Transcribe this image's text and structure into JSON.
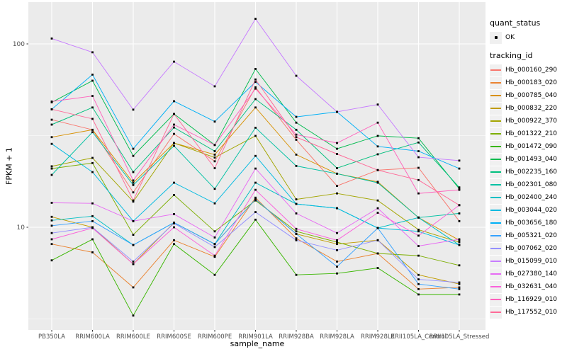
{
  "chart_data": {
    "type": "line",
    "title": "",
    "xlabel": "sample_name",
    "ylabel": "FPKM + 1",
    "y_scale": "log10",
    "y_tick_labels": [
      "100",
      "10"
    ],
    "y_tick_values": [
      100,
      10
    ],
    "y_minor_values": [
      31.62,
      3.162
    ],
    "ylim": [
      2.75,
      169
    ],
    "grid": "on",
    "legend_position": "right",
    "panel_bg": "#EBEBEB",
    "grid_color": "#FFFFFF",
    "tick_text_color": "#4D4D4D",
    "point_color": "#000000",
    "categories": [
      "PB350LA",
      "RRIM600LA",
      "RRIM600LE",
      "RRIM600SE",
      "RRIM600PE",
      "RRIM901LA",
      "RRIM928BA",
      "RRIM928LA",
      "RRIM928LE",
      "RRII105LA_Control",
      "RRII105LA_Stressed"
    ],
    "legend": {
      "quant_status_title": "quant_status",
      "quant_status_items": [
        {
          "label": "OK",
          "marker": "point"
        }
      ],
      "tracking_id_title": "tracking_id"
    },
    "series": [
      {
        "name": "Hb_000160_290",
        "color": "#F8766D",
        "values": [
          38.6,
          34,
          15.5,
          32.3,
          22.9,
          58,
          30,
          16.8,
          20.5,
          21.1,
          10.8
        ]
      },
      {
        "name": "Hb_000183_020",
        "color": "#EA8331",
        "values": [
          8.1,
          7.3,
          4.7,
          8.5,
          6.9,
          14.5,
          8.7,
          6.5,
          7.2,
          4.6,
          4.7
        ]
      },
      {
        "name": "Hb_000785_040",
        "color": "#D89000",
        "values": [
          31,
          34,
          17.5,
          28.8,
          24.9,
          45,
          24.9,
          19.6,
          17.7,
          11.3,
          8.5
        ]
      },
      {
        "name": "Hb_000832_220",
        "color": "#C09B00",
        "values": [
          11.4,
          10,
          6.3,
          10.6,
          8.1,
          14.2,
          9.2,
          8.1,
          8.5,
          5.5,
          4.9
        ]
      },
      {
        "name": "Hb_000922_370",
        "color": "#A3A500",
        "values": [
          21.5,
          23.9,
          13.8,
          28.8,
          24,
          31.5,
          14.2,
          15.3,
          14,
          9.7,
          8.3
        ]
      },
      {
        "name": "Hb_001322_210",
        "color": "#7CAE00",
        "values": [
          20.9,
          22.4,
          9.1,
          15,
          9.5,
          14,
          9.5,
          8.3,
          7.2,
          7.0,
          6.2
        ]
      },
      {
        "name": "Hb_001472_090",
        "color": "#39B600",
        "values": [
          6.6,
          8.6,
          3.3,
          8.1,
          5.5,
          11,
          5.5,
          5.6,
          6.0,
          4.3,
          4.3
        ]
      },
      {
        "name": "Hb_001493_040",
        "color": "#00BB4E",
        "values": [
          48,
          63,
          24.5,
          41.5,
          28.1,
          73,
          37.2,
          26.8,
          31.5,
          30.6,
          16.2
        ]
      },
      {
        "name": "Hb_002235_160",
        "color": "#00BF7D",
        "values": [
          36.3,
          45,
          20,
          35,
          26,
          50,
          34,
          21,
          25,
          29,
          16.5
        ]
      },
      {
        "name": "Hb_002301_080",
        "color": "#00C1A3",
        "values": [
          19.3,
          33,
          17,
          27.8,
          16.2,
          34.9,
          21.6,
          19.6,
          17.5,
          11.3,
          11.9
        ]
      },
      {
        "name": "Hb_002400_240",
        "color": "#00BFC4",
        "values": [
          10.9,
          11.5,
          8,
          10.6,
          8.1,
          17.5,
          13.4,
          12.7,
          9.9,
          11.3,
          8.0
        ]
      },
      {
        "name": "Hb_003044_020",
        "color": "#00BAE0",
        "values": [
          28.5,
          20,
          10.8,
          17.5,
          13.5,
          24.5,
          13.4,
          12.7,
          9.9,
          9.5,
          8.0
        ]
      },
      {
        "name": "Hb_003656_180",
        "color": "#00B0F6",
        "values": [
          44,
          68,
          26.8,
          48.7,
          37.7,
          62,
          40,
          42.6,
          27.6,
          26,
          20.9
        ]
      },
      {
        "name": "Hb_005321_020",
        "color": "#35A2FF",
        "values": [
          10.2,
          10.8,
          8,
          10.6,
          8.1,
          14.2,
          9.2,
          6.1,
          9.9,
          4.9,
          4.6
        ]
      },
      {
        "name": "Hb_007062_020",
        "color": "#9590FF",
        "values": [
          9.3,
          10,
          6.5,
          10.5,
          7.8,
          12.1,
          8.5,
          7.5,
          8.5,
          5.2,
          5.0
        ]
      },
      {
        "name": "Hb_015099_010",
        "color": "#C77CFF",
        "values": [
          107,
          90,
          43.8,
          80,
          58.7,
          137,
          67,
          42.6,
          46.7,
          24.1,
          23.1
        ]
      },
      {
        "name": "Hb_027380_140",
        "color": "#E76BF3",
        "values": [
          13.6,
          13.5,
          10.8,
          11.8,
          8.8,
          20.9,
          11.9,
          9.3,
          12.7,
          7.9,
          8.6
        ]
      },
      {
        "name": "Hb_032631_040",
        "color": "#FA62DB",
        "values": [
          8.6,
          9.9,
          6.3,
          10.0,
          7.0,
          16,
          9.8,
          8.5,
          12.0,
          9.0,
          13.2
        ]
      },
      {
        "name": "Hb_116929_010",
        "color": "#FF62BC",
        "values": [
          48.5,
          52,
          18,
          36.3,
          28.1,
          57,
          32,
          28.8,
          37.2,
          15.3,
          16
        ]
      },
      {
        "name": "Hb_117552_010",
        "color": "#FF6A98",
        "values": [
          44,
          39,
          14,
          41.5,
          21,
          64,
          31,
          25.1,
          20.5,
          18.1,
          13.2
        ]
      }
    ]
  }
}
